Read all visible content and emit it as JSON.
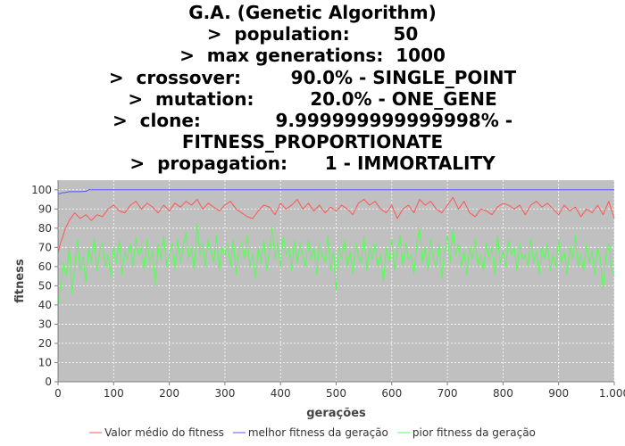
{
  "chart_data": {
    "type": "line",
    "title_lines": [
      "G.A. (Genetic Algorithm)",
      ">  population:       50",
      ">  max generations:  1000",
      ">  crossover:        90.0% - SINGLE_POINT",
      ">  mutation:         20.0% - ONE_GENE",
      ">  clone:            9.999999999999998% -",
      "FITNESS_PROPORTIONATE",
      ">  propagation:      1 - IMMORTALITY"
    ],
    "xlabel": "gerações",
    "ylabel": "fitness",
    "xlim": [
      0,
      1000
    ],
    "ylim": [
      0,
      105
    ],
    "x_ticks": [
      0,
      100,
      200,
      300,
      400,
      500,
      600,
      700,
      800,
      900,
      1000
    ],
    "x_tick_labels": [
      "0",
      "100",
      "200",
      "300",
      "400",
      "500",
      "600",
      "700",
      "800",
      "900",
      "1.000"
    ],
    "y_ticks": [
      0,
      10,
      20,
      30,
      40,
      50,
      60,
      70,
      80,
      90,
      100
    ],
    "y_tick_labels": [
      "0",
      "10",
      "20",
      "30",
      "40",
      "50",
      "60",
      "70",
      "80",
      "90",
      "100"
    ],
    "grid": true,
    "legend": "bottom",
    "plot_background": "#c0c0c0",
    "series": [
      {
        "name": "Valor médio do fitness",
        "color": "#ff5555",
        "x": [
          0,
          4,
          8,
          12,
          20,
          30,
          40,
          50,
          60,
          70,
          80,
          90,
          100,
          110,
          120,
          130,
          140,
          150,
          160,
          170,
          180,
          190,
          200,
          210,
          220,
          230,
          240,
          250,
          260,
          270,
          280,
          290,
          300,
          310,
          320,
          330,
          340,
          350,
          360,
          370,
          380,
          390,
          400,
          410,
          420,
          430,
          440,
          450,
          460,
          470,
          480,
          490,
          500,
          510,
          520,
          530,
          540,
          550,
          560,
          570,
          580,
          590,
          600,
          610,
          620,
          630,
          640,
          650,
          660,
          670,
          680,
          690,
          700,
          710,
          720,
          730,
          740,
          750,
          760,
          770,
          780,
          790,
          800,
          810,
          820,
          830,
          840,
          850,
          860,
          870,
          880,
          890,
          900,
          910,
          920,
          930,
          940,
          950,
          960,
          970,
          980,
          990,
          1000
        ],
        "values": [
          67,
          72,
          75,
          79,
          84,
          88,
          85,
          87,
          84,
          87,
          86,
          90,
          92,
          89,
          88,
          92,
          94,
          90,
          93,
          91,
          88,
          92,
          89,
          93,
          91,
          94,
          92,
          95,
          90,
          93,
          91,
          89,
          92,
          94,
          90,
          88,
          86,
          85,
          89,
          92,
          91,
          87,
          93,
          90,
          92,
          95,
          90,
          93,
          89,
          92,
          88,
          91,
          89,
          92,
          90,
          87,
          93,
          95,
          92,
          94,
          90,
          88,
          92,
          85,
          90,
          92,
          88,
          95,
          92,
          94,
          90,
          88,
          92,
          96,
          90,
          94,
          88,
          86,
          90,
          89,
          87,
          91,
          93,
          92,
          90,
          92,
          87,
          92,
          94,
          91,
          93,
          90,
          87,
          92,
          89,
          91,
          86,
          90,
          88,
          92,
          87,
          94,
          85
        ]
      },
      {
        "name": "melhor fitness da geração",
        "color": "#5555ff",
        "x": [
          0,
          4,
          8,
          12,
          20,
          30,
          40,
          50,
          55,
          60,
          100,
          200,
          300,
          400,
          500,
          600,
          700,
          800,
          900,
          1000
        ],
        "values": [
          98,
          98,
          98.5,
          98.5,
          99,
          99,
          99,
          99.2,
          100,
          100,
          100,
          100,
          100,
          100,
          100,
          100,
          100,
          100,
          100,
          100
        ]
      },
      {
        "name": "pior fitness da geração",
        "color": "#55ff55",
        "x": [
          0,
          5,
          10,
          15,
          20,
          25,
          30,
          35,
          40,
          45,
          50,
          55,
          60,
          65,
          70,
          75,
          80,
          85,
          90,
          95,
          100,
          105,
          110,
          115,
          120,
          125,
          130,
          135,
          140,
          145,
          150,
          155,
          160,
          165,
          170,
          175,
          180,
          185,
          190,
          195,
          200,
          205,
          210,
          215,
          220,
          225,
          230,
          235,
          240,
          245,
          250,
          255,
          260,
          265,
          270,
          275,
          280,
          285,
          290,
          295,
          300,
          305,
          310,
          315,
          320,
          325,
          330,
          335,
          340,
          345,
          350,
          355,
          360,
          365,
          370,
          375,
          380,
          385,
          390,
          395,
          400,
          405,
          410,
          415,
          420,
          425,
          430,
          435,
          440,
          445,
          450,
          455,
          460,
          465,
          470,
          475,
          480,
          485,
          490,
          495,
          500,
          505,
          510,
          515,
          520,
          525,
          530,
          535,
          540,
          545,
          550,
          555,
          560,
          565,
          570,
          575,
          580,
          585,
          590,
          595,
          600,
          605,
          610,
          615,
          620,
          625,
          630,
          635,
          640,
          645,
          650,
          655,
          660,
          665,
          670,
          675,
          680,
          685,
          690,
          695,
          700,
          705,
          710,
          715,
          720,
          725,
          730,
          735,
          740,
          745,
          750,
          755,
          760,
          765,
          770,
          775,
          780,
          785,
          790,
          795,
          800,
          805,
          810,
          815,
          820,
          825,
          830,
          835,
          840,
          845,
          850,
          855,
          860,
          865,
          870,
          875,
          880,
          885,
          890,
          895,
          900,
          905,
          910,
          915,
          920,
          925,
          930,
          935,
          940,
          945,
          950,
          955,
          960,
          965,
          970,
          975,
          980,
          985,
          990,
          995,
          1000
        ],
        "values": [
          38,
          48,
          62,
          55,
          70,
          46,
          60,
          74,
          58,
          65,
          52,
          70,
          62,
          75,
          58,
          68,
          72,
          60,
          66,
          55,
          70,
          62,
          74,
          56,
          68,
          64,
          72,
          60,
          75,
          66,
          70,
          58,
          74,
          62,
          68,
          50,
          72,
          64,
          76,
          60,
          66,
          72,
          58,
          74,
          62,
          70,
          78,
          64,
          70,
          58,
          82,
          66,
          72,
          60,
          74,
          68,
          62,
          76,
          58,
          70,
          66,
          72,
          60,
          74,
          56,
          68,
          72,
          64,
          76,
          60,
          66,
          54,
          70,
          62,
          74,
          58,
          68,
          80,
          64,
          72,
          60,
          76,
          66,
          70,
          58,
          74,
          62,
          72,
          66,
          60,
          74,
          64,
          70,
          56,
          72,
          66,
          62,
          76,
          58,
          68,
          48,
          70,
          64,
          74,
          60,
          68,
          56,
          72,
          66,
          62,
          76,
          58,
          70,
          64,
          72,
          60,
          66,
          52,
          70,
          62,
          74,
          58,
          68,
          76,
          60,
          72,
          64,
          66,
          56,
          72,
          80,
          62,
          70,
          58,
          74,
          64,
          60,
          72,
          54,
          68,
          76,
          62,
          80,
          66,
          72,
          60,
          68,
          56,
          70,
          64,
          74,
          60,
          66,
          58,
          72,
          64,
          70,
          56,
          76,
          62,
          68,
          60,
          74,
          66,
          70,
          58,
          72,
          64,
          66,
          60,
          74,
          62,
          68,
          56,
          70,
          64,
          72,
          58,
          66,
          60,
          74,
          62,
          68,
          56,
          70,
          64,
          76,
          60,
          66,
          58,
          72,
          62,
          68,
          56,
          70,
          64,
          48,
          66,
          72,
          60,
          55
        ]
      }
    ]
  }
}
